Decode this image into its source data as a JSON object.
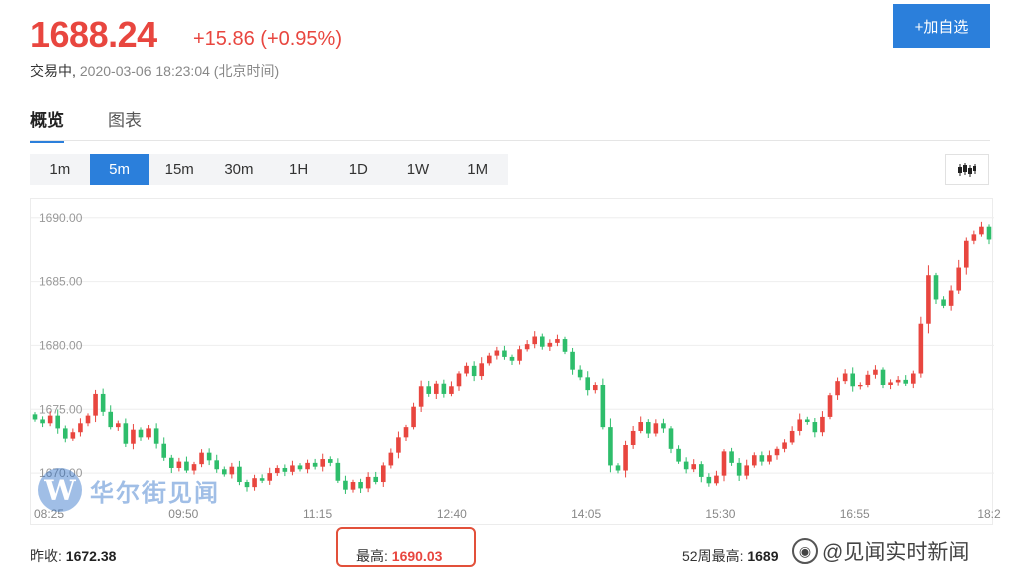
{
  "quote": {
    "price": "1688.24",
    "change": "+15.86 (+0.95%)",
    "status": "交易中,",
    "timestamp": "2020-03-06 18:23:04 (北京时间)"
  },
  "actions": {
    "add_watchlist": "+加自选"
  },
  "tabs": [
    {
      "label": "概览"
    },
    {
      "label": "图表"
    }
  ],
  "intervals": [
    {
      "label": "1m"
    },
    {
      "label": "5m"
    },
    {
      "label": "15m"
    },
    {
      "label": "30m"
    },
    {
      "label": "1H"
    },
    {
      "label": "1D"
    },
    {
      "label": "1W"
    },
    {
      "label": "1M"
    }
  ],
  "chart_type_icon": "candlestick-icon",
  "stats": {
    "prev_close_label": "昨收:",
    "prev_close": "1672.38",
    "high_label": "最高:",
    "high": "1690.03",
    "week52_high_label": "52周最高:",
    "week52_high": "1689"
  },
  "watermarks": {
    "logo_letter": "W",
    "logo_text": "华尔街见闻",
    "weibo_text": "@见闻实时新闻"
  },
  "colors": {
    "up": "#e8463f",
    "down": "#2ebd6b",
    "accent": "#2b7fdb"
  },
  "chart_data": {
    "type": "candlestick",
    "x_ticks": [
      "08:25",
      "09:50",
      "11:15",
      "12:40",
      "14:05",
      "15:30",
      "16:55",
      "18:2"
    ],
    "y_ticks": [
      1690.0,
      1685.0,
      1680.0,
      1675.0,
      1670.0
    ],
    "y_tick_labels": [
      "1690.00",
      "1685.00",
      "1680.00",
      "1675.00",
      "1670.00"
    ],
    "ylim": [
      1667.5,
      1691.0
    ],
    "grid": true,
    "close": [
      1674.2,
      1673.9,
      1674.5,
      1673.5,
      1672.7,
      1673.2,
      1673.9,
      1674.5,
      1676.2,
      1674.8,
      1673.6,
      1673.9,
      1672.3,
      1673.4,
      1672.8,
      1673.5,
      1672.3,
      1671.2,
      1670.4,
      1670.9,
      1670.2,
      1670.7,
      1671.6,
      1671.0,
      1670.3,
      1669.9,
      1670.5,
      1669.3,
      1668.9,
      1669.6,
      1669.4,
      1670.0,
      1670.4,
      1670.1,
      1670.6,
      1670.3,
      1670.8,
      1670.5,
      1671.1,
      1670.8,
      1669.4,
      1668.7,
      1669.3,
      1668.8,
      1669.7,
      1669.3,
      1670.6,
      1671.6,
      1672.8,
      1673.6,
      1675.2,
      1676.8,
      1676.2,
      1677.0,
      1676.2,
      1676.8,
      1677.8,
      1678.4,
      1677.6,
      1678.6,
      1679.2,
      1679.6,
      1679.1,
      1678.8,
      1679.7,
      1680.1,
      1680.7,
      1679.9,
      1680.2,
      1680.5,
      1679.5,
      1678.1,
      1677.5,
      1676.5,
      1676.9,
      1673.6,
      1670.6,
      1670.2,
      1672.2,
      1673.3,
      1674.0,
      1673.1,
      1673.9,
      1673.5,
      1671.9,
      1670.9,
      1670.3,
      1670.7,
      1669.7,
      1669.2,
      1669.8,
      1671.7,
      1670.8,
      1669.8,
      1670.6,
      1671.4,
      1670.9,
      1671.4,
      1671.9,
      1672.4,
      1673.3,
      1674.2,
      1674.0,
      1673.2,
      1674.4,
      1676.1,
      1677.2,
      1677.8,
      1676.8,
      1676.9,
      1677.7,
      1678.1,
      1676.9,
      1677.1,
      1677.3,
      1677.0,
      1677.8,
      1681.7,
      1685.5,
      1683.6,
      1683.1,
      1684.3,
      1686.1,
      1688.2,
      1688.7,
      1689.3,
      1688.3
    ]
  }
}
